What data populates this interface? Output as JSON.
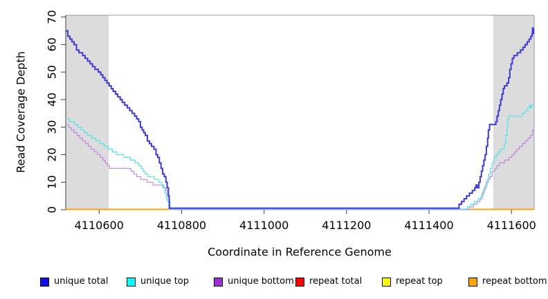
{
  "figure": {
    "xlabel": "Coordinate in Reference Genome",
    "ylabel": "Read Coverage Depth"
  },
  "chart_data": {
    "type": "line",
    "step": "after",
    "title": "",
    "xlabel": "Coordinate in Reference Genome",
    "ylabel": "Read Coverage Depth",
    "xlim": [
      4110519,
      4111655
    ],
    "ylim": [
      0,
      70.65
    ],
    "x_ticks": [
      4110600,
      4110800,
      4111000,
      4111200,
      4111400,
      4111600
    ],
    "y_ticks": [
      0,
      10,
      20,
      30,
      40,
      50,
      60,
      70
    ],
    "grid": false,
    "legend_position": "bottom",
    "background_color": "#ffffff",
    "shaded_regions": [
      {
        "from": 4110519,
        "to": 4110623,
        "color": "#dcdcdc"
      },
      {
        "from": 4111556,
        "to": 4111655,
        "color": "#dcdcdc"
      }
    ],
    "series": [
      {
        "name": "repeat total",
        "color": "#ff0000",
        "line_color": "#ff0000",
        "line_width": 1.2,
        "zero_lift": 0.5,
        "points": [
          [
            4110519,
            0
          ],
          [
            4111655,
            0
          ]
        ]
      },
      {
        "name": "repeat top",
        "color": "#ffff00",
        "line_color": "#ffff00",
        "line_width": 1.2,
        "zero_lift": 0.5,
        "points": [
          [
            4110519,
            0
          ],
          [
            4111655,
            0
          ]
        ]
      },
      {
        "name": "repeat bottom",
        "color": "#ffa500",
        "line_color": "#ffa500",
        "line_width": 1.8,
        "zero_lift": 0.6,
        "points": [
          [
            4110519,
            0
          ],
          [
            4111655,
            0
          ]
        ]
      },
      {
        "name": "unique bottom",
        "color": "#9b30d9",
        "line_color": "#c288e2",
        "line_width": 1.2,
        "zero_lift": 0.1,
        "points": [
          [
            4110519,
            31
          ],
          [
            4110526,
            30
          ],
          [
            4110532,
            29
          ],
          [
            4110539,
            28
          ],
          [
            4110546,
            27
          ],
          [
            4110553,
            26
          ],
          [
            4110560,
            25
          ],
          [
            4110567,
            24
          ],
          [
            4110574,
            23
          ],
          [
            4110581,
            22
          ],
          [
            4110588,
            21
          ],
          [
            4110596,
            20
          ],
          [
            4110603,
            19
          ],
          [
            4110609,
            18
          ],
          [
            4110615,
            17
          ],
          [
            4110620,
            16
          ],
          [
            4110625,
            15
          ],
          [
            4110677,
            14
          ],
          [
            4110684,
            13
          ],
          [
            4110691,
            12
          ],
          [
            4110701,
            11
          ],
          [
            4110716,
            10
          ],
          [
            4110731,
            9
          ],
          [
            4110754,
            8
          ],
          [
            4110762,
            7
          ],
          [
            4110766,
            5
          ],
          [
            4110769,
            3
          ],
          [
            4110772,
            0
          ],
          [
            4111498,
            1
          ],
          [
            4111508,
            2
          ],
          [
            4111517,
            3
          ],
          [
            4111524,
            4
          ],
          [
            4111529,
            6
          ],
          [
            4111534,
            8
          ],
          [
            4111539,
            10
          ],
          [
            4111544,
            11
          ],
          [
            4111548,
            12
          ],
          [
            4111553,
            14
          ],
          [
            4111559,
            15
          ],
          [
            4111565,
            16
          ],
          [
            4111571,
            17
          ],
          [
            4111583,
            18
          ],
          [
            4111594,
            19
          ],
          [
            4111601,
            20
          ],
          [
            4111607,
            21
          ],
          [
            4111613,
            22
          ],
          [
            4111619,
            23
          ],
          [
            4111626,
            24
          ],
          [
            4111633,
            25
          ],
          [
            4111640,
            26
          ],
          [
            4111646,
            27
          ],
          [
            4111651,
            29
          ]
        ]
      },
      {
        "name": "unique top",
        "color": "#00ffff",
        "line_color": "#4fe3ea",
        "line_width": 1.2,
        "zero_lift": 1.0,
        "points": [
          [
            4110519,
            33
          ],
          [
            4110528,
            32
          ],
          [
            4110540,
            31
          ],
          [
            4110548,
            30
          ],
          [
            4110556,
            29
          ],
          [
            4110564,
            28
          ],
          [
            4110572,
            27
          ],
          [
            4110582,
            26
          ],
          [
            4110592,
            25
          ],
          [
            4110602,
            24
          ],
          [
            4110612,
            23
          ],
          [
            4110622,
            22
          ],
          [
            4110632,
            21
          ],
          [
            4110642,
            20
          ],
          [
            4110660,
            19
          ],
          [
            4110676,
            18
          ],
          [
            4110688,
            17
          ],
          [
            4110696,
            16
          ],
          [
            4110702,
            15
          ],
          [
            4110707,
            14
          ],
          [
            4110712,
            13
          ],
          [
            4110718,
            12
          ],
          [
            4110734,
            11
          ],
          [
            4110744,
            10
          ],
          [
            4110752,
            9
          ],
          [
            4110757,
            8
          ],
          [
            4110760,
            6
          ],
          [
            4110763,
            4
          ],
          [
            4110766,
            3
          ],
          [
            4110772,
            0
          ],
          [
            4111493,
            1
          ],
          [
            4111501,
            2
          ],
          [
            4111510,
            3
          ],
          [
            4111519,
            4
          ],
          [
            4111526,
            5
          ],
          [
            4111531,
            7
          ],
          [
            4111536,
            9
          ],
          [
            4111541,
            11
          ],
          [
            4111545,
            13
          ],
          [
            4111549,
            15
          ],
          [
            4111553,
            17
          ],
          [
            4111558,
            19
          ],
          [
            4111563,
            20
          ],
          [
            4111568,
            21
          ],
          [
            4111573,
            22
          ],
          [
            4111583,
            24
          ],
          [
            4111586,
            27
          ],
          [
            4111589,
            30
          ],
          [
            4111591,
            33
          ],
          [
            4111594,
            34
          ],
          [
            4111626,
            35
          ],
          [
            4111633,
            36
          ],
          [
            4111639,
            37
          ],
          [
            4111644,
            38
          ],
          [
            4111646,
            37
          ],
          [
            4111649,
            38
          ]
        ]
      },
      {
        "name": "unique total",
        "color": "#0f0fe8",
        "line_color": "#3a3ae0",
        "line_width": 2.0,
        "zero_lift": 2.2,
        "points": [
          [
            4110519,
            65
          ],
          [
            4110524,
            63
          ],
          [
            4110529,
            62
          ],
          [
            4110534,
            61
          ],
          [
            4110539,
            60
          ],
          [
            4110545,
            58
          ],
          [
            4110551,
            57
          ],
          [
            4110560,
            56
          ],
          [
            4110566,
            55
          ],
          [
            4110572,
            54
          ],
          [
            4110578,
            53
          ],
          [
            4110584,
            52
          ],
          [
            4110590,
            51
          ],
          [
            4110598,
            50
          ],
          [
            4110604,
            49
          ],
          [
            4110609,
            48
          ],
          [
            4110614,
            47
          ],
          [
            4110619,
            46
          ],
          [
            4110624,
            45
          ],
          [
            4110629,
            44
          ],
          [
            4110634,
            43
          ],
          [
            4110640,
            42
          ],
          [
            4110645,
            41
          ],
          [
            4110651,
            40
          ],
          [
            4110656,
            39
          ],
          [
            4110662,
            38
          ],
          [
            4110668,
            37
          ],
          [
            4110674,
            36
          ],
          [
            4110680,
            35
          ],
          [
            4110686,
            34
          ],
          [
            4110691,
            33
          ],
          [
            4110696,
            32
          ],
          [
            4110700,
            30
          ],
          [
            4110704,
            29
          ],
          [
            4110708,
            28
          ],
          [
            4110712,
            27
          ],
          [
            4110717,
            25
          ],
          [
            4110722,
            24
          ],
          [
            4110727,
            23
          ],
          [
            4110733,
            22
          ],
          [
            4110738,
            20
          ],
          [
            4110742,
            19
          ],
          [
            4110746,
            17
          ],
          [
            4110750,
            15
          ],
          [
            4110754,
            13
          ],
          [
            4110758,
            12
          ],
          [
            4110762,
            10
          ],
          [
            4110765,
            8
          ],
          [
            4110768,
            5
          ],
          [
            4110770,
            0
          ],
          [
            4111473,
            2
          ],
          [
            4111479,
            3
          ],
          [
            4111485,
            4
          ],
          [
            4111491,
            5
          ],
          [
            4111498,
            6
          ],
          [
            4111505,
            7
          ],
          [
            4111511,
            8
          ],
          [
            4111514,
            9
          ],
          [
            4111517,
            8
          ],
          [
            4111521,
            10
          ],
          [
            4111524,
            12
          ],
          [
            4111527,
            14
          ],
          [
            4111530,
            16
          ],
          [
            4111533,
            18
          ],
          [
            4111536,
            20
          ],
          [
            4111539,
            23
          ],
          [
            4111542,
            26
          ],
          [
            4111544,
            29
          ],
          [
            4111547,
            31
          ],
          [
            4111562,
            32
          ],
          [
            4111565,
            34
          ],
          [
            4111568,
            36
          ],
          [
            4111571,
            38
          ],
          [
            4111574,
            40
          ],
          [
            4111577,
            42
          ],
          [
            4111580,
            44
          ],
          [
            4111583,
            45
          ],
          [
            4111589,
            46
          ],
          [
            4111593,
            48
          ],
          [
            4111596,
            51
          ],
          [
            4111599,
            53
          ],
          [
            4111602,
            55
          ],
          [
            4111606,
            56
          ],
          [
            4111614,
            57
          ],
          [
            4111622,
            58
          ],
          [
            4111628,
            59
          ],
          [
            4111633,
            60
          ],
          [
            4111638,
            61
          ],
          [
            4111643,
            62
          ],
          [
            4111647,
            63
          ],
          [
            4111650,
            64
          ],
          [
            4111651,
            66
          ],
          [
            4111653,
            64
          ],
          [
            4111654,
            65
          ]
        ]
      }
    ],
    "legend_order": [
      "unique total",
      "unique top",
      "unique bottom",
      "repeat total",
      "repeat top",
      "repeat bottom"
    ],
    "legend_x_positions": [
      58,
      183,
      309,
      427,
      552,
      677
    ],
    "axis_colors": {
      "box_top_right": "#999999",
      "axis_left_bottom": "#3c3c3c",
      "tick": "#3c3c3c"
    }
  }
}
